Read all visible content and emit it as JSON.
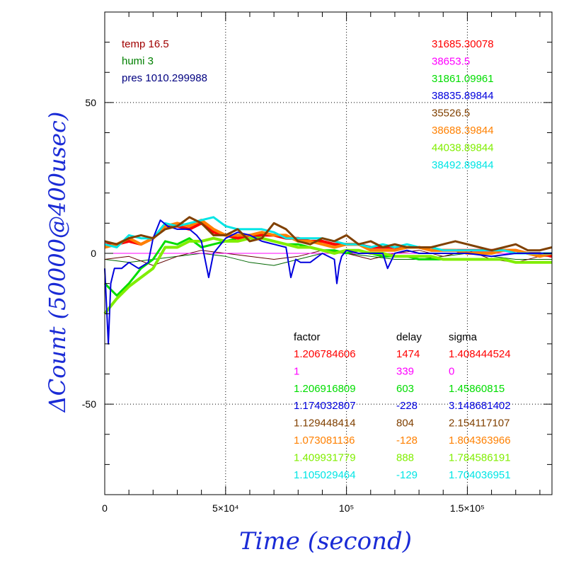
{
  "chart_data": {
    "type": "line",
    "xlabel": "Time (second)",
    "ylabel": "ΔCount (50000@400usec)",
    "xlim": [
      0,
      185000
    ],
    "ylim": [
      -80,
      80
    ],
    "x_ticks": [
      {
        "value": 0,
        "label": "0"
      },
      {
        "value": 50000,
        "label": "5×10⁴"
      },
      {
        "value": 100000,
        "label": "10⁵"
      },
      {
        "value": 150000,
        "label": "1.5×10⁵"
      }
    ],
    "y_ticks": [
      {
        "value": -50,
        "label": "-50"
      },
      {
        "value": 0,
        "label": "0"
      },
      {
        "value": 50,
        "label": "50"
      }
    ],
    "grid": true,
    "conditions": [
      {
        "text": "temp 16.5",
        "color": "#a00000"
      },
      {
        "text": "humi 3",
        "color": "#008000"
      },
      {
        "text": "pres 1010.299988",
        "color": "#000080"
      }
    ],
    "table_headers": [
      "factor",
      "delay",
      "sigma"
    ],
    "series": [
      {
        "color": "#ff0000",
        "baseline": "31685.30078",
        "factor": "1.206784606",
        "delay": "1474",
        "sigma": "1.408444524",
        "x": [
          0,
          5000,
          10000,
          15000,
          20000,
          25000,
          30000,
          35000,
          40000,
          45000,
          50000,
          55000,
          60000,
          65000,
          70000,
          75000,
          80000,
          85000,
          90000,
          95000,
          100000,
          105000,
          110000,
          115000,
          120000,
          125000,
          130000,
          135000,
          140000,
          145000,
          150000,
          155000,
          160000,
          165000,
          170000,
          175000,
          180000,
          185000
        ],
        "y": [
          3,
          3,
          4,
          3,
          5,
          9,
          9,
          8,
          10,
          7,
          6,
          5,
          6,
          6,
          6,
          5,
          5,
          4,
          4,
          3,
          3,
          3,
          2,
          2,
          2,
          2,
          2,
          1,
          1,
          1,
          1,
          1,
          1,
          1,
          1,
          0,
          0,
          -1
        ]
      },
      {
        "color": "#ff00ff",
        "baseline": "38653.5",
        "factor": "1",
        "delay": "339",
        "sigma": "0",
        "x": [
          0,
          185000
        ],
        "y": [
          0,
          0
        ]
      },
      {
        "color": "#00dd00",
        "baseline": "31861.09961",
        "factor": "1.206916809",
        "delay": "603",
        "sigma": "1.45860815",
        "x": [
          0,
          5000,
          10000,
          15000,
          20000,
          25000,
          30000,
          35000,
          40000,
          45000,
          50000,
          55000,
          60000,
          65000,
          70000,
          75000,
          80000,
          85000,
          90000,
          95000,
          100000,
          105000,
          110000,
          115000,
          120000,
          125000,
          130000,
          135000,
          140000,
          145000,
          150000,
          155000,
          160000,
          165000,
          170000,
          175000,
          180000,
          185000
        ],
        "y": [
          -10,
          -14,
          -10,
          -5,
          -2,
          4,
          3,
          5,
          2,
          3,
          4,
          5,
          6,
          5,
          4,
          3,
          3,
          2,
          1,
          1,
          0,
          1,
          0,
          -1,
          -1,
          -1,
          -2,
          -2,
          -2,
          -2,
          -2,
          -2,
          -2,
          -2,
          -3,
          -3,
          -3,
          -3
        ]
      },
      {
        "color": "#0000dd",
        "baseline": "38835.89844",
        "factor": "1.174032807",
        "delay": "-228",
        "sigma": "3.148681402",
        "x": [
          0,
          1500,
          2500,
          4000,
          7000,
          10000,
          14000,
          18000,
          20000,
          23000,
          26000,
          30000,
          35000,
          38000,
          40000,
          43000,
          45000,
          50000,
          55000,
          60000,
          65000,
          70000,
          75000,
          77000,
          79000,
          81000,
          85000,
          90000,
          95000,
          96000,
          97000,
          98000,
          100000,
          105000,
          110000,
          115000,
          117000,
          120000,
          125000,
          130000,
          140000,
          150000,
          160000,
          170000,
          180000,
          185000
        ],
        "y": [
          -5,
          -30,
          -10,
          -5,
          -5,
          -3,
          -5,
          -3,
          5,
          11,
          9,
          8,
          8,
          6,
          4,
          -8,
          0,
          5,
          7,
          6,
          4,
          3,
          2,
          -8,
          -2,
          -3,
          -3,
          0,
          -2,
          -10,
          -4,
          -1,
          1,
          0,
          0,
          0,
          -5,
          0,
          1,
          0,
          0,
          0,
          -1,
          0,
          0,
          0
        ]
      },
      {
        "color": "#804000",
        "baseline": "35526.5",
        "factor": "1.129448414",
        "delay": "804",
        "sigma": "2.154117107",
        "x": [
          0,
          5000,
          10000,
          15000,
          20000,
          25000,
          30000,
          35000,
          40000,
          45000,
          50000,
          55000,
          60000,
          65000,
          70000,
          75000,
          80000,
          85000,
          90000,
          95000,
          100000,
          105000,
          110000,
          115000,
          120000,
          125000,
          130000,
          135000,
          140000,
          145000,
          150000,
          155000,
          160000,
          165000,
          170000,
          175000,
          180000,
          185000
        ],
        "y": [
          4,
          3,
          5,
          6,
          5,
          8,
          9,
          12,
          10,
          6,
          6,
          8,
          4,
          5,
          10,
          8,
          4,
          3,
          5,
          4,
          6,
          3,
          4,
          2,
          3,
          2,
          2,
          2,
          3,
          4,
          3,
          2,
          1,
          2,
          3,
          1,
          1,
          2
        ]
      },
      {
        "color": "#ff8000",
        "baseline": "38688.39844",
        "factor": "1.073081136",
        "delay": "-128",
        "sigma": "1.804363966",
        "x": [
          0,
          5000,
          10000,
          15000,
          20000,
          25000,
          30000,
          35000,
          40000,
          45000,
          50000,
          55000,
          60000,
          65000,
          70000,
          75000,
          80000,
          85000,
          90000,
          95000,
          100000,
          105000,
          110000,
          115000,
          120000,
          125000,
          130000,
          135000,
          140000,
          145000,
          150000,
          155000,
          160000,
          165000,
          170000,
          175000,
          180000,
          185000
        ],
        "y": [
          2,
          3,
          5,
          3,
          5,
          9,
          10,
          9,
          11,
          8,
          6,
          6,
          6,
          7,
          6,
          6,
          4,
          4,
          3,
          2,
          3,
          3,
          1,
          1,
          1,
          2,
          2,
          1,
          1,
          1,
          0,
          0,
          0,
          1,
          1,
          0,
          -1,
          0
        ]
      },
      {
        "color": "#80ee00",
        "baseline": "44038.89844",
        "factor": "1.409931779",
        "delay": "888",
        "sigma": "1.784586191",
        "x": [
          0,
          5000,
          10000,
          15000,
          20000,
          25000,
          30000,
          35000,
          40000,
          45000,
          50000,
          55000,
          60000,
          65000,
          70000,
          75000,
          80000,
          85000,
          90000,
          95000,
          100000,
          105000,
          110000,
          115000,
          120000,
          125000,
          130000,
          135000,
          140000,
          145000,
          150000,
          155000,
          160000,
          165000,
          170000,
          175000,
          180000,
          185000
        ],
        "y": [
          -20,
          -15,
          -11,
          -8,
          -5,
          2,
          2,
          4,
          4,
          5,
          4,
          4,
          5,
          5,
          4,
          3,
          2,
          2,
          1,
          0,
          1,
          1,
          0,
          0,
          -1,
          -1,
          -1,
          -1,
          -2,
          -2,
          -2,
          -2,
          -2,
          -2,
          -3,
          -3,
          -3,
          -3
        ]
      },
      {
        "color": "#00e5e5",
        "baseline": "38492.89844",
        "factor": "1.105029464",
        "delay": "-129",
        "sigma": "1.704036951",
        "x": [
          0,
          5000,
          10000,
          15000,
          20000,
          25000,
          30000,
          35000,
          40000,
          45000,
          50000,
          55000,
          60000,
          65000,
          70000,
          75000,
          80000,
          85000,
          90000,
          95000,
          100000,
          105000,
          110000,
          115000,
          120000,
          125000,
          130000,
          135000,
          140000,
          145000,
          150000,
          155000,
          160000,
          165000,
          170000,
          175000,
          180000,
          185000
        ],
        "y": [
          3,
          2,
          6,
          5,
          5,
          10,
          9,
          10,
          11,
          12,
          9,
          8,
          8,
          8,
          7,
          5,
          5,
          5,
          5,
          4,
          3,
          3,
          2,
          3,
          2,
          3,
          2,
          2,
          1,
          1,
          1,
          1,
          1,
          1,
          0,
          0,
          0,
          0
        ]
      },
      {
        "color": "#006600",
        "x": [
          0,
          10000,
          20000,
          30000,
          40000,
          50000,
          60000,
          70000,
          80000,
          90000,
          100000,
          110000,
          120000,
          130000,
          140000,
          150000,
          160000,
          170000,
          180000,
          185000
        ],
        "y": [
          -2,
          -3,
          -2,
          -1,
          0,
          -1,
          -3,
          -4,
          -2,
          0,
          0,
          -1,
          -2,
          -2,
          -1,
          0,
          -1,
          -2,
          -2,
          -2
        ]
      },
      {
        "color": "#600000",
        "x": [
          0,
          10000,
          20000,
          30000,
          40000,
          50000,
          60000,
          70000,
          80000,
          90000,
          100000,
          110000,
          120000,
          130000,
          140000,
          150000,
          160000,
          170000,
          180000,
          185000
        ],
        "y": [
          -2,
          -1,
          -4,
          -1,
          1,
          0,
          -1,
          -2,
          -1,
          1,
          0,
          -2,
          0,
          1,
          -1,
          1,
          -2,
          -3,
          -1,
          -1
        ]
      }
    ]
  }
}
